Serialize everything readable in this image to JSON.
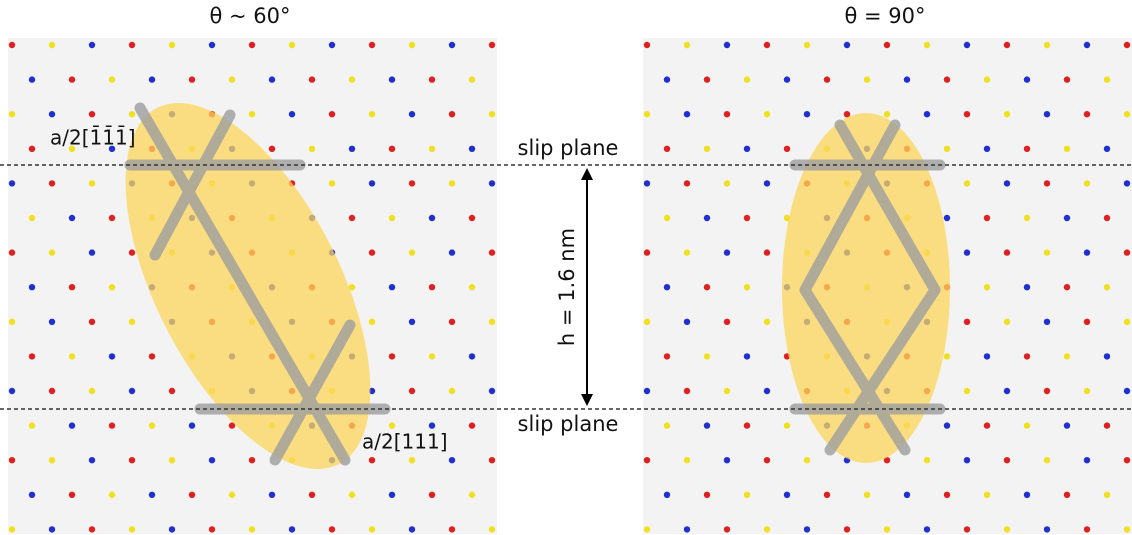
{
  "panels": [
    {
      "title": "θ ~ 60°",
      "burgers_labels": [
        "a/2[1̄1̄1̄]",
        "a/2[111]"
      ]
    },
    {
      "title": "θ = 90°"
    }
  ],
  "slip_planes": [
    "slip plane",
    "slip plane"
  ],
  "spacing_label": "h = 1.6 nm"
}
